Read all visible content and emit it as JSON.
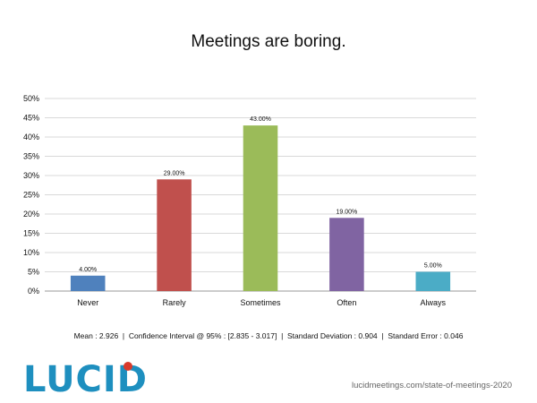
{
  "chart_data": {
    "type": "bar",
    "title": "Meetings are boring.",
    "categories": [
      "Never",
      "Rarely",
      "Sometimes",
      "Often",
      "Always"
    ],
    "values": [
      4,
      29,
      43,
      19,
      5
    ],
    "data_labels": [
      "4.00%",
      "29.00%",
      "43.00%",
      "19.00%",
      "5.00%"
    ],
    "colors": [
      "#4f81bd",
      "#c0504d",
      "#9bbb59",
      "#8064a2",
      "#4bacc6"
    ],
    "ylim": [
      0,
      50
    ],
    "yticks": [
      "0%",
      "5%",
      "10%",
      "15%",
      "20%",
      "25%",
      "30%",
      "35%",
      "40%",
      "45%",
      "50%"
    ],
    "grid": true,
    "legend": "none",
    "xlabel": "",
    "ylabel": ""
  },
  "stats_text": "Mean : 2.926  |  Confidence Interval @ 95% : [2.835 - 3.017]  |  Standard Deviation : 0.904  |  Standard Error : 0.046",
  "logo": {
    "text": "LUCID",
    "accent_color": "#d93a2b",
    "text_color": "#1e8fbf"
  },
  "source": "lucidmeetings.com/state-of-meetings-2020"
}
